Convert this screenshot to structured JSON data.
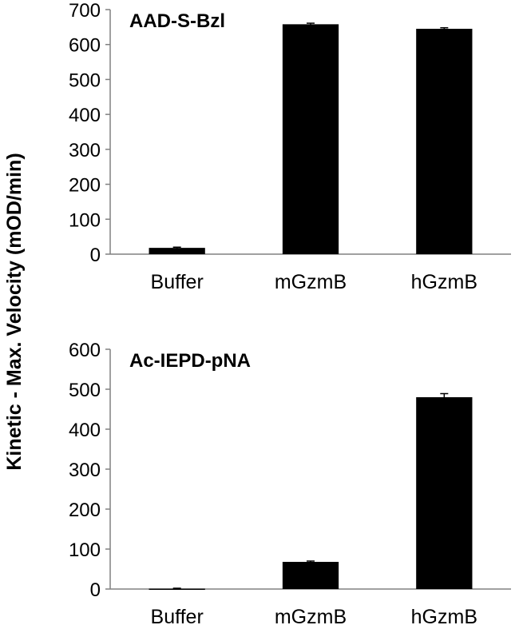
{
  "ylabel": "Kinetic - Max. Velocity (mOD/min)",
  "chart_data": [
    {
      "type": "bar",
      "title": "AAD-S-Bzl",
      "categories": [
        "Buffer",
        "mGzmB",
        "hGzmB"
      ],
      "values": [
        18,
        658,
        645
      ],
      "errors": [
        2,
        3,
        3
      ],
      "ylim": [
        0,
        700
      ],
      "yticks": [
        0,
        100,
        200,
        300,
        400,
        500,
        600,
        700
      ],
      "bar_color": "#000000",
      "grid": false
    },
    {
      "type": "bar",
      "title": "Ac-IEPD-pNA",
      "categories": [
        "Buffer",
        "mGzmB",
        "hGzmB"
      ],
      "values": [
        1,
        68,
        480
      ],
      "errors": [
        1,
        2,
        9
      ],
      "ylim": [
        0,
        600
      ],
      "yticks": [
        0,
        100,
        200,
        300,
        400,
        500,
        600
      ],
      "bar_color": "#000000",
      "grid": false
    }
  ]
}
